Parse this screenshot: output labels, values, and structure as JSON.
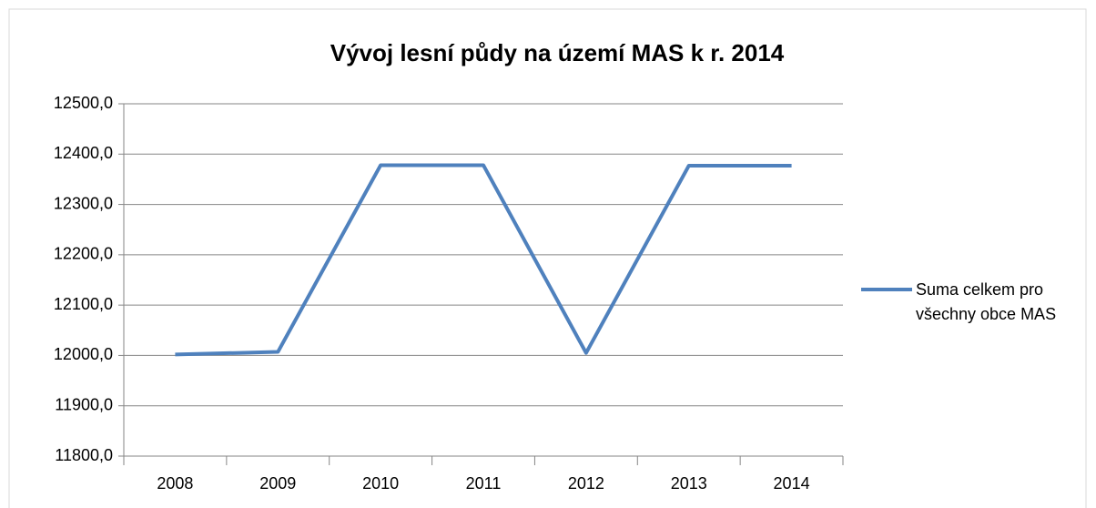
{
  "chart_data": {
    "type": "line",
    "title": "Vývoj lesní půdy na území MAS k r. 2014",
    "categories": [
      "2008",
      "2009",
      "2010",
      "2011",
      "2012",
      "2013",
      "2014"
    ],
    "series": [
      {
        "name": "Suma celkem pro všechny obce MAS",
        "color": "#4f81bd",
        "values": [
          12002,
          12007,
          12378,
          12378,
          12005,
          12377,
          12377
        ]
      }
    ],
    "ylim": [
      11800,
      12500
    ],
    "yticks": [
      {
        "value": 11800,
        "label": "11800,0"
      },
      {
        "value": 11900,
        "label": "11900,0"
      },
      {
        "value": 12000,
        "label": "12000,0"
      },
      {
        "value": 12100,
        "label": "12100,0"
      },
      {
        "value": 12200,
        "label": "12200,0"
      },
      {
        "value": 12300,
        "label": "12300,0"
      },
      {
        "value": 12400,
        "label": "12400,0"
      },
      {
        "value": 12500,
        "label": "12500,0"
      }
    ],
    "grid": true,
    "legend": "right"
  }
}
